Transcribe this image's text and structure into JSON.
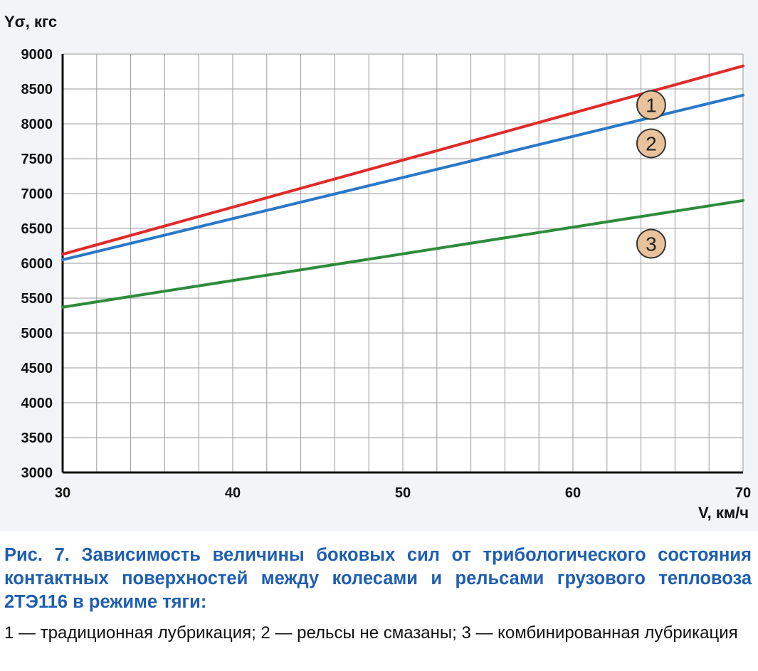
{
  "figure": {
    "caption_title": "Рис. 7. Зависимость величины боковых сил от трибологического со­стояния контактных поверхностей между колесами и рельсами грузо­вого тепловоза 2ТЭ116 в режиме тяги:",
    "caption_legend": "1 — традиционная лубрикация; 2 — рельсы не смазаны; 3 — комбинирован­ная лубрикация"
  },
  "chart_data": {
    "type": "line",
    "title": "",
    "xlabel": "V, км/ч",
    "ylabel": "Yσ, кгс",
    "xlim": [
      30,
      70
    ],
    "ylim": [
      3000,
      9000
    ],
    "x_ticks": [
      30,
      40,
      50,
      60,
      70
    ],
    "y_ticks": [
      3000,
      3500,
      4000,
      4500,
      5000,
      5500,
      6000,
      6500,
      7000,
      7500,
      8000,
      8500,
      9000
    ],
    "x_minor_step": 2,
    "grid": true,
    "series": [
      {
        "label": "1",
        "color": "#e02a2a",
        "x": [
          30,
          70
        ],
        "y": [
          6130,
          8830
        ]
      },
      {
        "label": "2",
        "color": "#2a78c8",
        "x": [
          30,
          70
        ],
        "y": [
          6050,
          8410
        ]
      },
      {
        "label": "3",
        "color": "#2e8b3a",
        "x": [
          30,
          70
        ],
        "y": [
          5370,
          6900
        ]
      }
    ],
    "annotations": [
      {
        "text": "1",
        "x": 64.6,
        "y": 8270
      },
      {
        "text": "2",
        "x": 64.6,
        "y": 7720
      },
      {
        "text": "3",
        "x": 64.6,
        "y": 6280
      }
    ]
  }
}
